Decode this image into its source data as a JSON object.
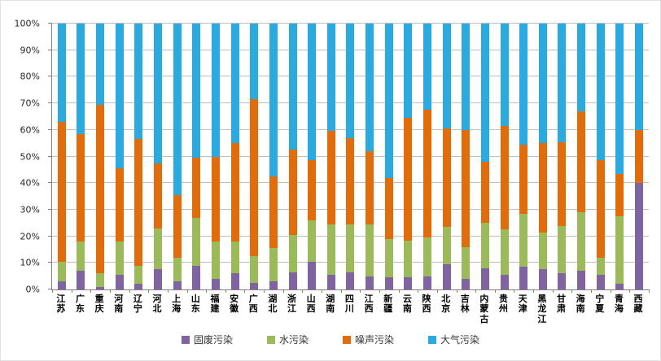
{
  "chart_data": {
    "type": "bar",
    "variant": "stacked-100-percent",
    "title": "",
    "xlabel": "",
    "ylabel": "",
    "ylim": [
      0,
      100
    ],
    "grid": true,
    "legend_position": "bottom",
    "axis_color": "#808080",
    "gridline_color": "#bfbfbf",
    "background_color": "#ffffff",
    "y_ticks": [
      "0%",
      "10%",
      "20%",
      "30%",
      "40%",
      "50%",
      "60%",
      "70%",
      "80%",
      "90%",
      "100%"
    ],
    "categories": [
      "江苏",
      "广东",
      "重庆",
      "河南",
      "辽宁",
      "河北",
      "上海",
      "山东",
      "福建",
      "安徽",
      "广西",
      "湖北",
      "浙江",
      "山西",
      "湖南",
      "四川",
      "江西",
      "新疆",
      "云南",
      "陕西",
      "北京",
      "吉林",
      "内蒙古",
      "贵州",
      "天津",
      "黑龙江",
      "甘肃",
      "海南",
      "宁夏",
      "青海",
      "西藏"
    ],
    "series": [
      {
        "key": "solid-waste",
        "name": "固废污染",
        "color": "#8064A2",
        "values": [
          3,
          7,
          1,
          5.5,
          2,
          7.5,
          3,
          9,
          4,
          6,
          2.5,
          3,
          6.5,
          10.5,
          5.5,
          6.5,
          5,
          4.5,
          4.5,
          5,
          9.5,
          4,
          8,
          5.5,
          8.5,
          7.5,
          6,
          7,
          5.5,
          2,
          40
        ]
      },
      {
        "key": "water",
        "name": "水污染",
        "color": "#9BBB59",
        "values": [
          7.5,
          11,
          5,
          12.5,
          7,
          15.5,
          9,
          18,
          14,
          12,
          10,
          12.5,
          14,
          15.5,
          19,
          18,
          19.5,
          14.5,
          14,
          14.5,
          14,
          12,
          17,
          17,
          20,
          14,
          18,
          22,
          6.5,
          25.5,
          0
        ]
      },
      {
        "key": "noise",
        "name": "噪声污染",
        "color": "#E36C09",
        "values": [
          52.5,
          40.5,
          63.5,
          27.5,
          47.5,
          24.5,
          23.5,
          22.5,
          32,
          37,
          59,
          27,
          32,
          22.5,
          35,
          32.5,
          27.5,
          23,
          46,
          48,
          37,
          44,
          23,
          39,
          26,
          33.5,
          31.5,
          38,
          36.5,
          16,
          20
        ]
      },
      {
        "key": "air",
        "name": "大气污染",
        "color": "#29ABE2",
        "values": [
          37,
          41.5,
          30.5,
          54.5,
          43.5,
          52.5,
          64.5,
          50.5,
          50,
          45,
          28.5,
          57.5,
          47.5,
          51.5,
          40.5,
          43,
          48,
          58,
          35.5,
          32.5,
          39.5,
          40,
          52,
          38.5,
          45.5,
          45,
          44.5,
          33,
          51.5,
          56.5,
          40
        ]
      }
    ]
  }
}
